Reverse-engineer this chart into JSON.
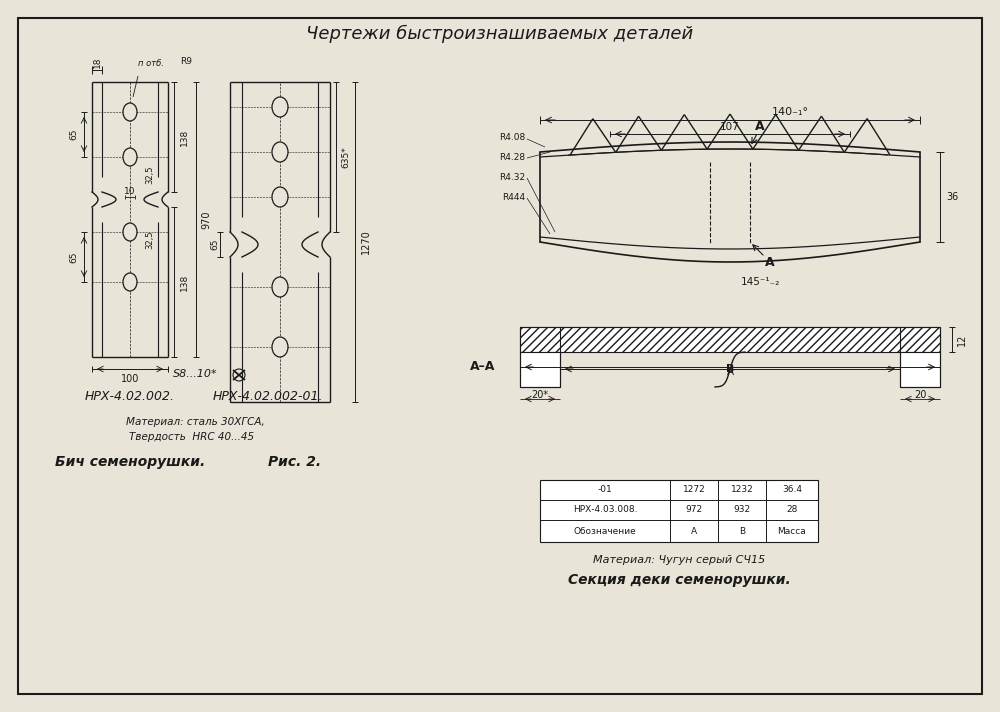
{
  "title": "Чертежи быстроизнашиваемых деталей",
  "bg_color": "#e8e4d8",
  "line_color": "#1a1a1a",
  "left_part": {
    "labels": {
      "part1": "НРХ-4.02.002.",
      "part2": "НРХ-4.02.002-01.",
      "material": "Материал: сталь 30ХГСА,",
      "hardness": "Твердость  HRC 40...45",
      "title": "Бич семенорушки.",
      "fig": "Рис. 2."
    }
  },
  "right_part": {
    "table": {
      "headers": [
        "Обозначение",
        "А",
        "В",
        "Масса"
      ],
      "rows": [
        [
          "НРХ-4.03.008.",
          "972",
          "932",
          "28"
        ],
        [
          "-01",
          "1272",
          "1232",
          "36.4"
        ]
      ]
    },
    "material_note": "Материал: Чугун серый СЧ15",
    "title": "Секция деки семенорушки."
  }
}
